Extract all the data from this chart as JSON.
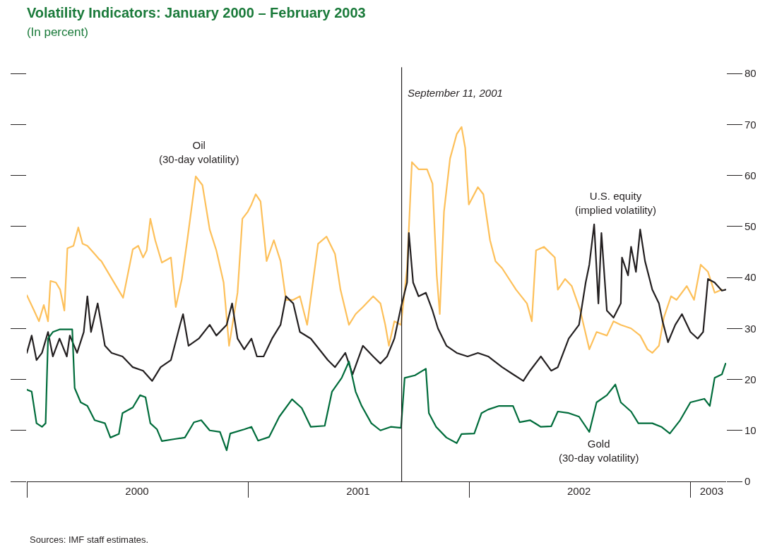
{
  "chart_data": {
    "type": "line",
    "title": "Volatility Indicators: January 2000 – February 2003",
    "subtitle": "(In percent)",
    "xlim": [
      "2000-01-01",
      "2003-03-01"
    ],
    "xticks": [
      {
        "value": "2000-07-01",
        "label": "2000"
      },
      {
        "value": "2001-07-01",
        "label": "2001"
      },
      {
        "value": "2002-07-01",
        "label": "2002"
      },
      {
        "value": "2003-02-05",
        "label": "2003"
      }
    ],
    "ylim": [
      0,
      80
    ],
    "yticks": [
      0,
      10,
      20,
      30,
      40,
      50,
      60,
      70,
      80
    ],
    "marker": "none",
    "line_style": "solid",
    "series": [
      {
        "color": "#fdc05a",
        "x": [
          "2000-01-01",
          "2000-01-13",
          "2000-01-21",
          "2000-01-29",
          "2000-02-05",
          "2000-02-09",
          "2000-02-18",
          "2000-02-25",
          "2000-03-03",
          "2000-03-08",
          "2000-03-18",
          "2000-03-26",
          "2000-04-02",
          "2000-04-10",
          "2000-04-22",
          "2000-04-30",
          "2000-05-03",
          "2000-06-08",
          "2000-06-24",
          "2000-07-03",
          "2000-07-11",
          "2000-07-17",
          "2000-07-23",
          "2000-07-31",
          "2000-08-11",
          "2000-08-26",
          "2000-09-03",
          "2000-09-13",
          "2000-09-22",
          "2000-10-06",
          "2000-10-17",
          "2000-10-29",
          "2000-11-09",
          "2000-11-21",
          "2000-11-30",
          "2000-12-14",
          "2000-12-22",
          "2000-12-31",
          "2001-01-06",
          "2001-01-13",
          "2001-01-21",
          "2001-01-31",
          "2001-02-12",
          "2001-02-23",
          "2001-03-04",
          "2001-03-16",
          "2001-03-27",
          "2001-04-08",
          "2001-04-26",
          "2001-05-10",
          "2001-05-24",
          "2001-06-02",
          "2001-06-16",
          "2001-06-27",
          "2001-07-09",
          "2001-07-26",
          "2001-08-07",
          "2001-08-15",
          "2001-08-21",
          "2001-08-30",
          "2001-09-10",
          "2001-09-20",
          "2001-09-28",
          "2001-10-09",
          "2001-10-23",
          "2001-11-01",
          "2001-11-08",
          "2001-11-13",
          "2001-11-20",
          "2001-11-30",
          "2001-12-11",
          "2001-12-19",
          "2001-12-25",
          "2001-12-31",
          "2002-01-15",
          "2002-01-24",
          "2002-02-04",
          "2002-02-13",
          "2002-02-24",
          "2002-03-19",
          "2002-04-06",
          "2002-04-14",
          "2002-04-21",
          "2002-05-04",
          "2002-05-22",
          "2002-05-27",
          "2002-06-08",
          "2002-06-19",
          "2002-07-03",
          "2002-07-18",
          "2002-07-30",
          "2002-08-16",
          "2002-08-27",
          "2002-09-08",
          "2002-09-25",
          "2002-10-10",
          "2002-10-22",
          "2002-10-30",
          "2002-11-10",
          "2002-11-18",
          "2002-11-30",
          "2002-12-09",
          "2002-12-26",
          "2003-01-07",
          "2003-01-18",
          "2003-01-30",
          "2003-02-10",
          "2003-02-22"
        ],
        "values": [
          36.5,
          33.5,
          31.4,
          34.6,
          31.4,
          39.3,
          39,
          37.6,
          33.5,
          45.7,
          46.2,
          49.8,
          46.6,
          46.2,
          44.6,
          43.5,
          43.2,
          36,
          45.5,
          46.2,
          43.9,
          45.3,
          51.5,
          47.3,
          42.9,
          43.9,
          34.2,
          39.7,
          47.3,
          59.8,
          58.1,
          49.4,
          45.3,
          39,
          26.6,
          37,
          51.5,
          52.9,
          54.3,
          56.3,
          54.9,
          43.2,
          47.3,
          43.2,
          35.6,
          35.6,
          36.3,
          30.7,
          46.6,
          48,
          44.6,
          37.6,
          30.7,
          32.8,
          34.2,
          36.3,
          34.9,
          30.7,
          26.6,
          31.4,
          30.7,
          41.8,
          62.6,
          61.2,
          61.2,
          58.4,
          40.4,
          32.8,
          52.9,
          63.3,
          68.1,
          69.5,
          65.4,
          54.3,
          57.7,
          56.3,
          47.3,
          43.2,
          41.8,
          37.6,
          34.9,
          31.4,
          45.3,
          46,
          43.9,
          37.6,
          39.7,
          38.3,
          33.5,
          25.9,
          29.3,
          28.6,
          31.4,
          30.7,
          30,
          28.6,
          25.9,
          25.2,
          26.6,
          32.1,
          36.3,
          35.6,
          38.3,
          35.6,
          42.5,
          41.1,
          37,
          37.6
        ]
      },
      {
        "color": "#231f20",
        "x": [
          "2000-01-01",
          "2000-01-09",
          "2000-01-17",
          "2000-01-26",
          "2000-02-05",
          "2000-02-13",
          "2000-02-24",
          "2000-03-07",
          "2000-03-12",
          "2000-03-24",
          "2000-04-04",
          "2000-04-10",
          "2000-04-16",
          "2000-04-27",
          "2000-05-09",
          "2000-05-20",
          "2000-06-07",
          "2000-06-24",
          "2000-07-11",
          "2000-07-26",
          "2000-08-09",
          "2000-08-26",
          "2000-09-10",
          "2000-09-15",
          "2000-09-24",
          "2000-10-11",
          "2000-10-29",
          "2000-11-09",
          "2000-11-26",
          "2000-12-05",
          "2000-12-14",
          "2000-12-25",
          "2001-01-06",
          "2001-01-15",
          "2001-01-26",
          "2001-02-09",
          "2001-02-23",
          "2001-03-04",
          "2001-03-16",
          "2001-03-27",
          "2001-04-14",
          "2001-05-12",
          "2001-05-24",
          "2001-06-10",
          "2001-06-22",
          "2001-07-09",
          "2001-07-26",
          "2001-08-07",
          "2001-08-18",
          "2001-08-30",
          "2001-09-10",
          "2001-09-20",
          "2001-09-23",
          "2001-09-30",
          "2001-10-09",
          "2001-10-21",
          "2001-11-01",
          "2001-11-10",
          "2001-11-24",
          "2001-12-11",
          "2001-12-29",
          "2002-01-15",
          "2002-02-01",
          "2002-02-24",
          "2002-03-14",
          "2002-03-31",
          "2002-04-11",
          "2002-04-29",
          "2002-05-16",
          "2002-05-27",
          "2002-06-14",
          "2002-07-01",
          "2002-07-12",
          "2002-07-18",
          "2002-07-26",
          "2002-08-02",
          "2002-08-07",
          "2002-08-16",
          "2002-08-27",
          "2002-09-08",
          "2002-09-10",
          "2002-09-20",
          "2002-09-25",
          "2002-10-03",
          "2002-10-10",
          "2002-10-18",
          "2002-10-30",
          "2002-11-10",
          "2002-11-16",
          "2002-11-25",
          "2002-12-07",
          "2002-12-18",
          "2003-01-01",
          "2003-01-13",
          "2003-01-22",
          "2003-01-30",
          "2003-02-10",
          "2003-02-22",
          "2003-02-28"
        ],
        "values": [
          25.2,
          28.6,
          23.8,
          25.2,
          29.3,
          24.5,
          28,
          24.5,
          28.6,
          25.2,
          29.3,
          36.3,
          29.3,
          34.9,
          26.6,
          25.2,
          24.5,
          22.4,
          21.7,
          19.7,
          22.4,
          23.8,
          30.7,
          32.8,
          26.6,
          28,
          30.7,
          28.6,
          30.7,
          34.9,
          28,
          25.9,
          28,
          24.5,
          24.5,
          28,
          30.7,
          36.3,
          34.9,
          29.3,
          28,
          23.8,
          22.4,
          25.2,
          21,
          26.6,
          24.5,
          23.1,
          24.5,
          28,
          34.2,
          39,
          48.7,
          39,
          36.3,
          37,
          33.5,
          30,
          26.6,
          25.2,
          24.5,
          25.2,
          24.5,
          22.4,
          21,
          19.7,
          21.7,
          24.5,
          21.7,
          22.4,
          28,
          30.7,
          39,
          42.5,
          50.4,
          34.9,
          48.7,
          33.5,
          32.1,
          34.9,
          43.9,
          40.4,
          46,
          41.1,
          49.4,
          43.2,
          37.6,
          34.9,
          31.4,
          27.3,
          30.7,
          32.8,
          29.3,
          28,
          29.3,
          39.7,
          39,
          37.4,
          37.6
        ]
      },
      {
        "color": "#006c3b",
        "x": [
          "2000-01-01",
          "2000-01-09",
          "2000-01-17",
          "2000-01-26",
          "2000-02-01",
          "2000-02-05",
          "2000-02-13",
          "2000-02-24",
          "2000-03-07",
          "2000-03-16",
          "2000-03-20",
          "2000-03-30",
          "2000-04-10",
          "2000-04-22",
          "2000-05-09",
          "2000-05-18",
          "2000-06-01",
          "2000-06-07",
          "2000-06-24",
          "2000-07-06",
          "2000-07-15",
          "2000-07-23",
          "2000-08-03",
          "2000-08-11",
          "2000-09-01",
          "2000-09-18",
          "2000-10-03",
          "2000-10-15",
          "2000-10-29",
          "2000-11-15",
          "2000-11-26",
          "2000-12-02",
          "2000-12-25",
          "2001-01-06",
          "2001-01-17",
          "2001-02-04",
          "2001-02-21",
          "2001-03-14",
          "2001-03-30",
          "2001-04-14",
          "2001-05-07",
          "2001-05-19",
          "2001-06-04",
          "2001-06-16",
          "2001-06-27",
          "2001-07-07",
          "2001-07-23",
          "2001-08-07",
          "2001-08-24",
          "2001-09-10",
          "2001-09-16",
          "2001-10-03",
          "2001-10-21",
          "2001-10-26",
          "2001-11-07",
          "2001-11-24",
          "2001-12-11",
          "2001-12-19",
          "2002-01-09",
          "2002-01-21",
          "2002-02-01",
          "2002-02-19",
          "2002-03-14",
          "2002-03-25",
          "2002-04-11",
          "2002-04-29",
          "2002-05-16",
          "2002-05-27",
          "2002-06-14",
          "2002-07-01",
          "2002-07-18",
          "2002-07-30",
          "2002-08-16",
          "2002-08-30",
          "2002-09-08",
          "2002-09-25",
          "2002-10-07",
          "2002-10-30",
          "2002-11-14",
          "2002-11-28",
          "2002-12-15",
          "2003-01-01",
          "2003-01-24",
          "2003-02-02",
          "2003-02-10",
          "2003-02-22",
          "2003-02-28"
        ],
        "values": [
          18,
          17.6,
          11.4,
          10.7,
          11.4,
          28,
          29.3,
          29.8,
          29.8,
          29.8,
          18.3,
          15.5,
          14.8,
          12,
          11.4,
          8.6,
          9.3,
          13.4,
          14.5,
          16.9,
          16.5,
          11.4,
          10.2,
          7.9,
          8.3,
          8.6,
          11.6,
          12,
          10,
          9.7,
          6.1,
          9.4,
          10.2,
          10.7,
          8,
          8.7,
          12.7,
          16.1,
          14.4,
          10.7,
          10.9,
          17.6,
          20.3,
          23.5,
          17.6,
          14.8,
          11.4,
          10,
          10.7,
          10.5,
          20.3,
          20.8,
          22.1,
          13.4,
          10.7,
          8.6,
          7.5,
          9.3,
          9.4,
          13.4,
          14.1,
          14.8,
          14.8,
          11.6,
          12,
          10.7,
          10.8,
          13.7,
          13.4,
          12.7,
          9.7,
          15.5,
          16.9,
          19,
          15.5,
          13.7,
          11.4,
          11.4,
          10.7,
          9.4,
          12,
          15.5,
          16.2,
          14.8,
          20.3,
          21,
          23.1
        ]
      }
    ],
    "ref_lines": [
      {
        "axis": "x",
        "value": "2001-09-11",
        "label": "September 11, 2001",
        "color": "#231f20",
        "line_style": "solid"
      }
    ],
    "annotations": [
      "Oil\n(30-day volatility)",
      "U.S. equity\n(implied volatility)",
      "Gold\n(30-day volatility)",
      "Sources: IMF staff estimates."
    ]
  }
}
